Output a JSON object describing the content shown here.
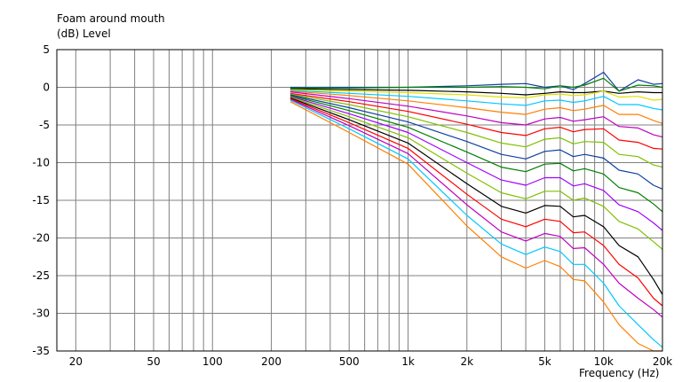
{
  "chart_data": {
    "type": "line",
    "title": "Foam around mouth",
    "ylabel": "(dB)  Level",
    "xlabel": "Frequency  (Hz)",
    "x_scale": "log",
    "xlim": [
      16,
      20000
    ],
    "ylim": [
      -35,
      5
    ],
    "grid": true,
    "x_ticks": [
      {
        "value": 20,
        "label": "20"
      },
      {
        "value": 50,
        "label": "50"
      },
      {
        "value": 100,
        "label": "100"
      },
      {
        "value": 200,
        "label": "200"
      },
      {
        "value": 500,
        "label": "500"
      },
      {
        "value": 1000,
        "label": "1k"
      },
      {
        "value": 2000,
        "label": "2k"
      },
      {
        "value": 5000,
        "label": "5k"
      },
      {
        "value": 10000,
        "label": "10k"
      },
      {
        "value": 20000,
        "label": "20k"
      }
    ],
    "y_ticks": [
      {
        "value": 5,
        "label": "5"
      },
      {
        "value": 0,
        "label": "0"
      },
      {
        "value": -5,
        "label": "-5"
      },
      {
        "value": -10,
        "label": "-10"
      },
      {
        "value": -15,
        "label": "-15"
      },
      {
        "value": -20,
        "label": "-20"
      },
      {
        "value": -25,
        "label": "-25"
      },
      {
        "value": -30,
        "label": "-30"
      },
      {
        "value": -35,
        "label": "-35"
      }
    ],
    "x": [
      250,
      500,
      1000,
      2000,
      3000,
      4000,
      5000,
      6000,
      7000,
      8000,
      10000,
      12000,
      15000,
      18000,
      20000
    ],
    "series": [
      {
        "color": "#1040a0",
        "values": [
          0.0,
          0.0,
          0.0,
          0.2,
          0.4,
          0.5,
          0.0,
          0.2,
          -0.3,
          0.5,
          2.0,
          -0.5,
          1.0,
          0.4,
          0.5
        ]
      },
      {
        "color": "#008000",
        "values": [
          -0.1,
          -0.1,
          0.0,
          0.0,
          0.1,
          0.0,
          -0.2,
          0.2,
          0.0,
          0.3,
          1.2,
          -0.5,
          0.3,
          0.2,
          0.0
        ]
      },
      {
        "color": "#000000",
        "values": [
          -0.2,
          -0.3,
          -0.4,
          -0.6,
          -0.8,
          -1.0,
          -0.8,
          -0.6,
          -0.7,
          -0.7,
          -0.5,
          -0.8,
          -0.6,
          -0.7,
          -0.7
        ]
      },
      {
        "color": "#e0e000",
        "values": [
          -0.3,
          -0.5,
          -0.7,
          -1.0,
          -1.3,
          -1.4,
          -1.0,
          -0.9,
          -1.1,
          -1.0,
          -0.5,
          -1.3,
          -1.2,
          -1.7,
          -1.6
        ]
      },
      {
        "color": "#00c8ff",
        "values": [
          -0.4,
          -0.8,
          -1.2,
          -1.8,
          -2.2,
          -2.4,
          -1.8,
          -1.7,
          -2.0,
          -1.8,
          -1.2,
          -2.3,
          -2.3,
          -2.8,
          -3.0
        ]
      },
      {
        "color": "#ff7f00",
        "values": [
          -0.5,
          -1.1,
          -1.8,
          -2.7,
          -3.3,
          -3.6,
          -2.9,
          -2.7,
          -3.1,
          -2.9,
          -2.4,
          -3.6,
          -3.6,
          -4.4,
          -4.8
        ]
      },
      {
        "color": "#c000c0",
        "values": [
          -0.6,
          -1.5,
          -2.5,
          -3.8,
          -4.7,
          -5.0,
          -4.2,
          -4.0,
          -4.5,
          -4.3,
          -3.9,
          -5.2,
          -5.4,
          -6.3,
          -6.6
        ]
      },
      {
        "color": "#ff0000",
        "values": [
          -0.8,
          -1.9,
          -3.2,
          -4.9,
          -6.0,
          -6.4,
          -5.5,
          -5.3,
          -5.9,
          -5.6,
          -5.5,
          -7.0,
          -7.3,
          -8.1,
          -8.2
        ]
      },
      {
        "color": "#80c000",
        "values": [
          -0.9,
          -2.3,
          -3.9,
          -6.0,
          -7.4,
          -7.9,
          -6.9,
          -6.7,
          -7.5,
          -7.2,
          -7.3,
          -8.9,
          -9.2,
          -10.3,
          -10.6
        ]
      },
      {
        "color": "#1040a0",
        "values": [
          -1.0,
          -2.7,
          -4.6,
          -7.2,
          -8.9,
          -9.5,
          -8.5,
          -8.3,
          -9.2,
          -8.9,
          -9.4,
          -11.0,
          -11.5,
          -13.0,
          -13.5
        ]
      },
      {
        "color": "#008000",
        "values": [
          -1.1,
          -3.1,
          -5.3,
          -8.6,
          -10.6,
          -11.2,
          -10.2,
          -10.1,
          -11.1,
          -10.8,
          -11.5,
          -13.3,
          -14.0,
          -15.5,
          -16.5
        ]
      },
      {
        "color": "#a000ff",
        "values": [
          -1.2,
          -3.5,
          -6.0,
          -10.0,
          -12.3,
          -13.0,
          -12.0,
          -12.0,
          -13.1,
          -12.8,
          -13.7,
          -15.6,
          -16.5,
          -18.0,
          -19.0
        ]
      },
      {
        "color": "#80c000",
        "values": [
          -1.3,
          -3.9,
          -6.7,
          -11.4,
          -14.0,
          -14.8,
          -13.8,
          -13.8,
          -15.0,
          -14.7,
          -15.8,
          -17.8,
          -18.8,
          -20.5,
          -21.5
        ]
      },
      {
        "color": "#000000",
        "values": [
          -1.4,
          -4.3,
          -7.4,
          -12.8,
          -15.8,
          -16.7,
          -15.7,
          -15.8,
          -17.2,
          -17.0,
          -18.5,
          -21.0,
          -22.5,
          -25.5,
          -27.5
        ]
      },
      {
        "color": "#ff0000",
        "values": [
          -1.5,
          -4.7,
          -8.1,
          -14.2,
          -17.5,
          -18.5,
          -17.5,
          -17.8,
          -19.3,
          -19.2,
          -21.0,
          -23.5,
          -25.3,
          -28.0,
          -29.0
        ]
      },
      {
        "color": "#c000c0",
        "values": [
          -1.6,
          -5.1,
          -8.8,
          -15.6,
          -19.2,
          -20.4,
          -19.4,
          -19.8,
          -21.4,
          -21.3,
          -23.5,
          -26.0,
          -28.0,
          -29.5,
          -30.5
        ]
      },
      {
        "color": "#00c8ff",
        "values": [
          -1.7,
          -5.5,
          -9.5,
          -17.0,
          -20.8,
          -22.2,
          -21.2,
          -21.8,
          -23.5,
          -23.5,
          -26.0,
          -29.0,
          -31.5,
          -33.5,
          -34.5
        ]
      },
      {
        "color": "#ff7f00",
        "values": [
          -1.9,
          -6.0,
          -10.2,
          -18.4,
          -22.5,
          -24.0,
          -23.0,
          -23.8,
          -25.5,
          -25.7,
          -28.5,
          -31.5,
          -34.0,
          -35.5,
          -36.5
        ]
      }
    ]
  }
}
